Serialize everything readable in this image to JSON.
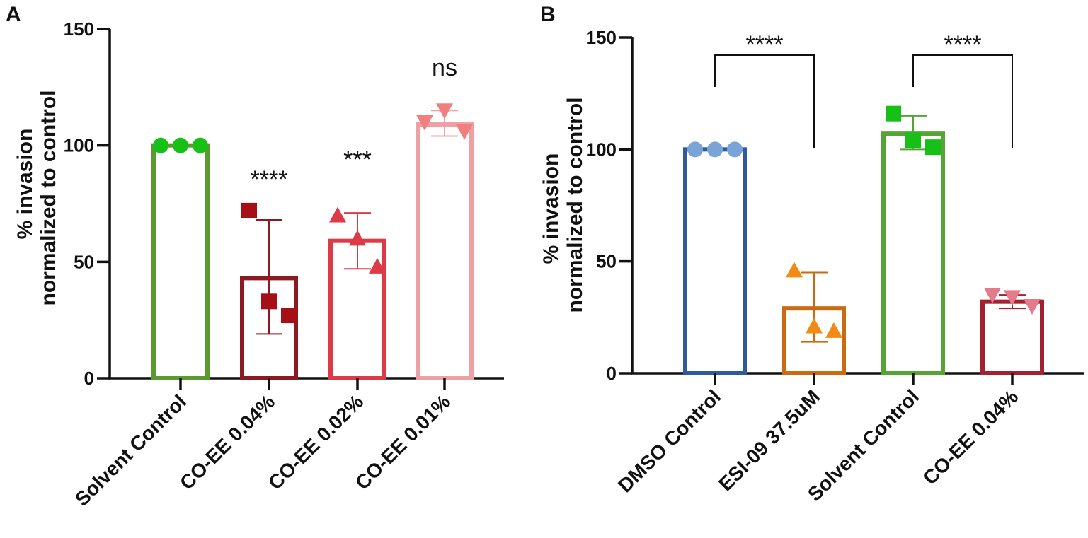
{
  "colors": {
    "axis": "#111111",
    "dark_green": "#5a9a2e",
    "dark_red": "#8b1a22",
    "red": "#dd3a47",
    "pink": "#eea0a5",
    "blue": "#2f5a9b",
    "light_blue": "#7aa3d8",
    "orange_dark": "#cc6a12",
    "orange": "#f28b13",
    "bright_green": "#16c016",
    "light_green": "#57a335",
    "crimson": "#a22232",
    "pink_marker": "#e57a8a"
  },
  "chart_data": [
    {
      "panel": "A",
      "type": "bar",
      "ylabel_line1": "% invasion",
      "ylabel_line2": "normalized to control",
      "ylim": [
        0,
        150
      ],
      "yticks": [
        "0",
        "50",
        "100",
        "150"
      ],
      "ytick_values": [
        0,
        50,
        100,
        150
      ],
      "categories": [
        "Solvent Control",
        "CO-EE 0.04%",
        "CO-EE 0.02%",
        "CO-EE 0.01%"
      ],
      "bars": [
        {
          "mean": 100,
          "err_low": 100,
          "err_high": 100,
          "bar_color": "#5a9a2e",
          "marker": "circle",
          "marker_color": "#16c016",
          "points": [
            100,
            100,
            100
          ],
          "sig": ""
        },
        {
          "mean": 43,
          "err_low": 19,
          "err_high": 68,
          "bar_color": "#8b1a22",
          "marker": "square",
          "marker_color": "#a50f15",
          "points": [
            72,
            33,
            27
          ],
          "sig": "****"
        },
        {
          "mean": 59,
          "err_low": 47,
          "err_high": 71,
          "bar_color": "#dd3a47",
          "marker": "triangle-up",
          "marker_color": "#dd3a47",
          "points": [
            70,
            60,
            48
          ],
          "sig": "***"
        },
        {
          "mean": 109,
          "err_low": 104,
          "err_high": 115,
          "bar_color": "#eea0a5",
          "marker": "triangle-down",
          "marker_color": "#f08080",
          "points": [
            110,
            115,
            106
          ],
          "sig": "ns"
        }
      ]
    },
    {
      "panel": "B",
      "type": "bar",
      "ylabel_line1": "% invasion",
      "ylabel_line2": "normalized to control",
      "ylim": [
        0,
        150
      ],
      "yticks": [
        "0",
        "50",
        "100",
        "150"
      ],
      "ytick_values": [
        0,
        50,
        100,
        150
      ],
      "categories": [
        "DMSO Control",
        "ESI-09 37.5uM",
        "Solvent Control",
        "CO-EE 0.04%"
      ],
      "bars": [
        {
          "mean": 100,
          "err_low": 100,
          "err_high": 100,
          "bar_color": "#2f5a9b",
          "marker": "circle",
          "marker_color": "#7aa3d8",
          "points": [
            100,
            100,
            100
          ]
        },
        {
          "mean": 29,
          "err_low": 14,
          "err_high": 45,
          "bar_color": "#cc6a12",
          "marker": "triangle-up",
          "marker_color": "#f28b13",
          "points": [
            46,
            21,
            19
          ]
        },
        {
          "mean": 107,
          "err_low": 100,
          "err_high": 115,
          "bar_color": "#57a335",
          "marker": "square",
          "marker_color": "#16c016",
          "points": [
            116,
            104,
            101
          ]
        },
        {
          "mean": 32,
          "err_low": 29,
          "err_high": 35,
          "bar_color": "#a22232",
          "marker": "triangle-down",
          "marker_color": "#e57a8a",
          "points": [
            35,
            34,
            30
          ]
        }
      ],
      "brackets": [
        {
          "from": 0,
          "to": 1,
          "label": "****"
        },
        {
          "from": 2,
          "to": 3,
          "label": "****"
        }
      ]
    }
  ]
}
